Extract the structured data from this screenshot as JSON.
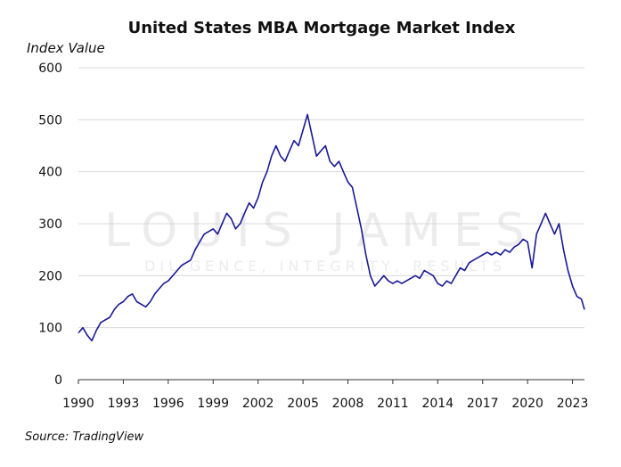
{
  "chart_data": {
    "type": "line",
    "title": "United States MBA Mortgage Market Index",
    "ylabel": "Index Value",
    "xlabel": "",
    "source": "Source: TradingView",
    "watermark": {
      "line1": "LOUIS JAMES",
      "line2": "DILIGENCE, INTEGRITY, RESULTS"
    },
    "ylim": [
      0,
      600
    ],
    "xlim": [
      1990,
      2023.8
    ],
    "yticks": [
      0,
      100,
      200,
      300,
      400,
      500,
      600
    ],
    "xticks": [
      1990,
      1993,
      1996,
      1999,
      2002,
      2005,
      2008,
      2011,
      2014,
      2017,
      2020,
      2023
    ],
    "grid": true,
    "color": "#1a1a96",
    "series": [
      {
        "name": "MBA Mortgage Market Index",
        "x": [
          1990.0,
          1990.3,
          1990.6,
          1990.9,
          1991.2,
          1991.5,
          1991.8,
          1992.1,
          1992.4,
          1992.7,
          1993.0,
          1993.3,
          1993.6,
          1993.9,
          1994.2,
          1994.5,
          1994.8,
          1995.1,
          1995.4,
          1995.7,
          1996.0,
          1996.3,
          1996.6,
          1996.9,
          1997.2,
          1997.5,
          1997.8,
          1998.1,
          1998.4,
          1998.7,
          1999.0,
          1999.3,
          1999.6,
          1999.9,
          2000.2,
          2000.5,
          2000.8,
          2001.1,
          2001.4,
          2001.7,
          2002.0,
          2002.3,
          2002.6,
          2002.9,
          2003.2,
          2003.5,
          2003.8,
          2004.1,
          2004.4,
          2004.7,
          2005.0,
          2005.3,
          2005.6,
          2005.9,
          2006.2,
          2006.5,
          2006.8,
          2007.1,
          2007.4,
          2007.7,
          2008.0,
          2008.3,
          2008.6,
          2008.9,
          2009.2,
          2009.5,
          2009.8,
          2010.1,
          2010.4,
          2010.7,
          2011.0,
          2011.3,
          2011.6,
          2011.9,
          2012.2,
          2012.5,
          2012.8,
          2013.1,
          2013.4,
          2013.7,
          2014.0,
          2014.3,
          2014.6,
          2014.9,
          2015.2,
          2015.5,
          2015.8,
          2016.1,
          2016.4,
          2016.7,
          2017.0,
          2017.3,
          2017.6,
          2017.9,
          2018.2,
          2018.5,
          2018.8,
          2019.1,
          2019.4,
          2019.7,
          2020.0,
          2020.3,
          2020.6,
          2020.9,
          2021.2,
          2021.5,
          2021.8,
          2022.1,
          2022.4,
          2022.7,
          2023.0,
          2023.3,
          2023.6,
          2023.8
        ],
        "values": [
          90,
          100,
          85,
          75,
          95,
          110,
          115,
          120,
          135,
          145,
          150,
          160,
          165,
          150,
          145,
          140,
          150,
          165,
          175,
          185,
          190,
          200,
          210,
          220,
          225,
          230,
          250,
          265,
          280,
          285,
          290,
          280,
          300,
          320,
          310,
          290,
          300,
          320,
          340,
          330,
          350,
          380,
          400,
          430,
          450,
          430,
          420,
          440,
          460,
          450,
          480,
          510,
          470,
          430,
          440,
          450,
          420,
          410,
          420,
          400,
          380,
          370,
          330,
          290,
          240,
          200,
          180,
          190,
          200,
          190,
          185,
          190,
          185,
          190,
          195,
          200,
          195,
          210,
          205,
          200,
          185,
          180,
          190,
          185,
          200,
          215,
          210,
          225,
          230,
          235,
          240,
          245,
          240,
          245,
          240,
          250,
          245,
          255,
          260,
          270,
          265,
          215,
          280,
          300,
          320,
          300,
          280,
          300,
          250,
          210,
          180,
          160,
          155,
          135
        ]
      }
    ]
  }
}
